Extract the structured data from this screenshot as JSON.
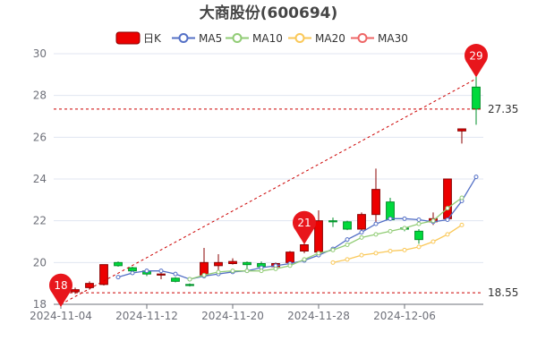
{
  "chart_data": {
    "type": "candlestick",
    "title": "大商股份(600694)",
    "legend": {
      "placement": "top-center",
      "items": [
        {
          "label": "日K",
          "kind": "bar",
          "color": "#ec0000"
        },
        {
          "label": "MA5",
          "kind": "line",
          "color": "#5470c6"
        },
        {
          "label": "MA10",
          "kind": "line",
          "color": "#91cc75"
        },
        {
          "label": "MA20",
          "kind": "line",
          "color": "#fac858"
        },
        {
          "label": "MA30",
          "kind": "line",
          "color": "#ee6666"
        }
      ]
    },
    "ylim": [
      18,
      30
    ],
    "yticks": [
      18,
      20,
      22,
      24,
      26,
      28,
      30
    ],
    "xtick_labels": [
      "2024-11-04",
      "2024-11-12",
      "2024-11-20",
      "2024-11-28",
      "2024-12-06"
    ],
    "xtick_index": [
      0,
      6,
      12,
      18,
      24
    ],
    "grid": true,
    "colors": {
      "up": "#ec0000",
      "down": "#00da3c",
      "markpoint": "#e8161c",
      "markline": "#cc0000"
    },
    "candles": [
      {
        "date": "2024-11-04",
        "open": 18.3,
        "close": 18.7,
        "low": 18.2,
        "high": 18.8
      },
      {
        "date": "2024-11-05",
        "open": 18.6,
        "close": 18.7,
        "low": 18.5,
        "high": 18.8
      },
      {
        "date": "2024-11-06",
        "open": 18.8,
        "close": 19.0,
        "low": 18.7,
        "high": 19.1
      },
      {
        "date": "2024-11-07",
        "open": 18.95,
        "close": 19.9,
        "low": 18.9,
        "high": 19.9
      },
      {
        "date": "2024-11-08",
        "open": 20.0,
        "close": 19.85,
        "low": 19.8,
        "high": 20.05
      },
      {
        "date": "2024-11-11",
        "open": 19.75,
        "close": 19.6,
        "low": 19.55,
        "high": 19.8
      },
      {
        "date": "2024-11-12",
        "open": 19.6,
        "close": 19.45,
        "low": 19.35,
        "high": 19.7
      },
      {
        "date": "2024-11-13",
        "open": 19.45,
        "close": 19.45,
        "low": 19.2,
        "high": 19.6
      },
      {
        "date": "2024-11-14",
        "open": 19.25,
        "close": 19.1,
        "low": 19.05,
        "high": 19.3
      },
      {
        "date": "2024-11-15",
        "open": 18.95,
        "close": 18.9,
        "low": 18.85,
        "high": 19.0
      },
      {
        "date": "2024-11-18",
        "open": 19.4,
        "close": 20.0,
        "low": 19.35,
        "high": 20.7
      },
      {
        "date": "2024-11-19",
        "open": 19.85,
        "close": 20.0,
        "low": 19.6,
        "high": 20.4
      },
      {
        "date": "2024-11-20",
        "open": 19.95,
        "close": 20.05,
        "low": 19.9,
        "high": 20.2
      },
      {
        "date": "2024-11-21",
        "open": 20.0,
        "close": 19.9,
        "low": 19.7,
        "high": 20.05
      },
      {
        "date": "2024-11-22",
        "open": 19.95,
        "close": 19.8,
        "low": 19.65,
        "high": 20.05
      },
      {
        "date": "2024-11-25",
        "open": 19.8,
        "close": 19.95,
        "low": 19.75,
        "high": 20.0
      },
      {
        "date": "2024-11-26",
        "open": 20.0,
        "close": 20.5,
        "low": 19.9,
        "high": 20.55
      },
      {
        "date": "2024-11-27",
        "open": 20.55,
        "close": 20.85,
        "low": 20.45,
        "high": 21.05
      },
      {
        "date": "2024-11-28",
        "open": 20.5,
        "close": 22.0,
        "low": 20.5,
        "high": 22.5
      },
      {
        "date": "2024-11-29",
        "open": 22.0,
        "close": 21.95,
        "low": 21.7,
        "high": 22.15
      },
      {
        "date": "2024-12-02",
        "open": 21.95,
        "close": 21.6,
        "low": 21.55,
        "high": 22.0
      },
      {
        "date": "2024-12-03",
        "open": 21.6,
        "close": 22.3,
        "low": 21.55,
        "high": 22.4
      },
      {
        "date": "2024-12-04",
        "open": 22.3,
        "close": 23.5,
        "low": 21.9,
        "high": 24.5
      },
      {
        "date": "2024-12-05",
        "open": 22.9,
        "close": 22.05,
        "low": 22.0,
        "high": 23.1
      },
      {
        "date": "2024-12-06",
        "open": 21.65,
        "close": 21.6,
        "low": 21.5,
        "high": 21.75
      },
      {
        "date": "2024-12-09",
        "open": 21.5,
        "close": 21.1,
        "low": 20.9,
        "high": 21.6
      },
      {
        "date": "2024-12-10",
        "open": 21.95,
        "close": 22.1,
        "low": 21.8,
        "high": 22.4
      },
      {
        "date": "2024-12-11",
        "open": 22.1,
        "close": 24.0,
        "low": 22.0,
        "high": 24.0
      },
      {
        "date": "2024-12-12",
        "open": 26.3,
        "close": 26.4,
        "low": 25.7,
        "high": 26.4
      },
      {
        "date": "2024-12-13",
        "open": 28.4,
        "close": 27.35,
        "low": 26.6,
        "high": 29.0
      }
    ],
    "series": [
      {
        "name": "MA5",
        "color": "#5470c6",
        "start_index": 4,
        "values": [
          19.3,
          19.5,
          19.6,
          19.6,
          19.45,
          19.2,
          19.35,
          19.45,
          19.55,
          19.6,
          19.75,
          19.85,
          19.95,
          20.1,
          20.35,
          20.65,
          21.1,
          21.45,
          21.85,
          22.1,
          22.1,
          22.05,
          21.95,
          22.05,
          22.95,
          24.1
        ]
      },
      {
        "name": "MA10",
        "color": "#91cc75",
        "start_index": 9,
        "values": [
          19.2,
          19.4,
          19.55,
          19.6,
          19.6,
          19.6,
          19.7,
          19.85,
          20.15,
          20.45,
          20.6,
          20.85,
          21.2,
          21.35,
          21.5,
          21.65,
          21.85,
          22.0,
          22.6,
          23.1
        ]
      },
      {
        "name": "MA20",
        "color": "#fac858",
        "start_index": 19,
        "values": [
          20.0,
          20.15,
          20.35,
          20.45,
          20.55,
          20.6,
          20.75,
          21.0,
          21.35,
          21.8
        ]
      },
      {
        "name": "MA30",
        "color": "#ee6666",
        "start_index": 29,
        "values": []
      }
    ],
    "mark_points": [
      {
        "index": 0,
        "value": 18,
        "label": "18"
      },
      {
        "index": 17,
        "value": 21,
        "label": "21"
      },
      {
        "index": 29,
        "value": 29,
        "label": "29"
      }
    ],
    "mark_lines": [
      {
        "value": 27.35,
        "label": "27.35"
      },
      {
        "value": 18.55,
        "label": "18.55"
      }
    ],
    "trend_line": {
      "from": {
        "index": 0,
        "value": 18.0
      },
      "to": {
        "index": 29,
        "value": 28.8
      }
    }
  }
}
